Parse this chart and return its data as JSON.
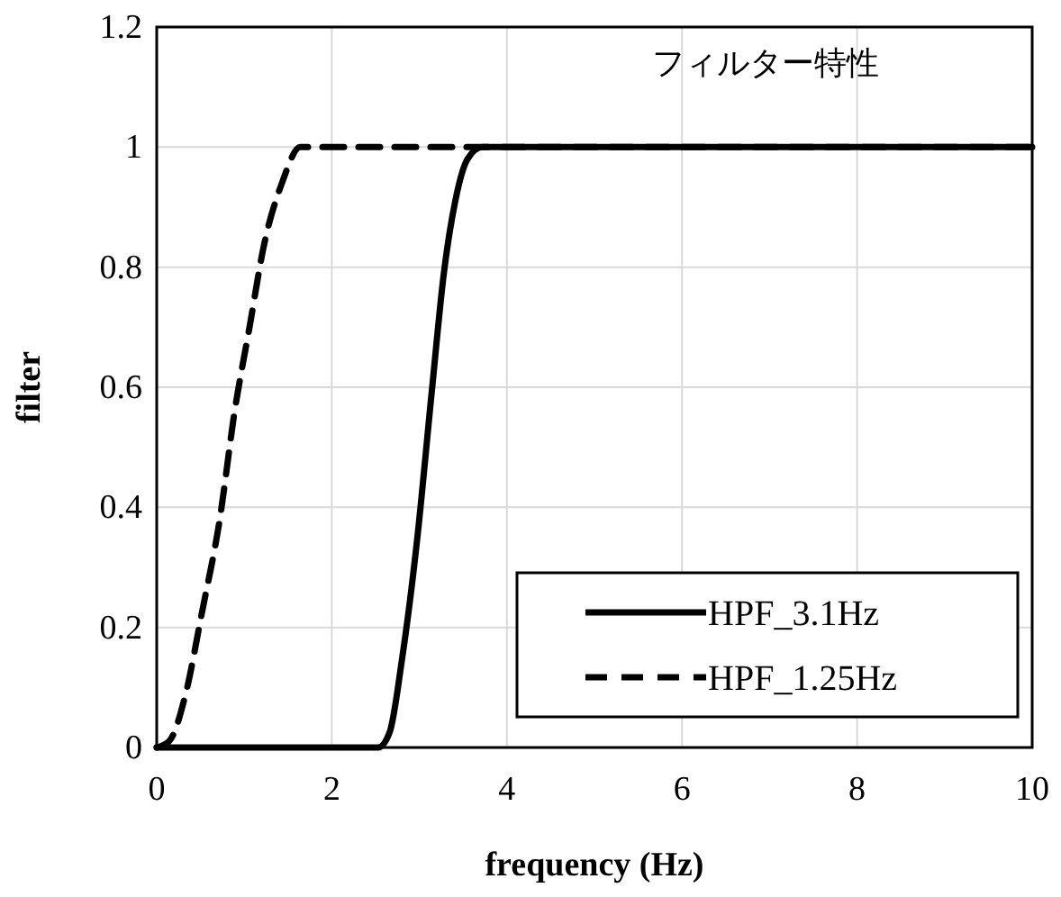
{
  "chart_data": {
    "type": "line",
    "title": "フィルター特性",
    "xlabel": "frequency (Hz)",
    "ylabel": "filter",
    "xlim": [
      0,
      10
    ],
    "xticks": [
      0,
      2,
      4,
      6,
      8,
      10
    ],
    "ylim": [
      0,
      1.2
    ],
    "yticks": [
      0,
      0.2,
      0.4,
      0.6,
      0.8,
      1,
      1.2
    ],
    "grid": true,
    "legend": "bottom right",
    "marker": "none",
    "series": [
      {
        "name": "HPF_3.1Hz",
        "color": "#000000",
        "line_style": "solid",
        "x": [
          0,
          2.53,
          2.66,
          2.8,
          2.97,
          3.14,
          3.28,
          3.41,
          3.55,
          3.72,
          10
        ],
        "values": [
          0,
          0,
          0.025,
          0.145,
          0.34,
          0.59,
          0.79,
          0.91,
          0.98,
          1,
          1
        ]
      },
      {
        "name": "HPF_1.25Hz",
        "color": "#000000",
        "line_style": "dashed",
        "x": [
          0,
          0.14,
          0.34,
          0.51,
          0.72,
          0.89,
          1.06,
          1.23,
          1.43,
          1.64,
          10
        ],
        "values": [
          0,
          0.01,
          0.095,
          0.22,
          0.38,
          0.56,
          0.7,
          0.84,
          0.94,
          1,
          1
        ]
      }
    ]
  }
}
